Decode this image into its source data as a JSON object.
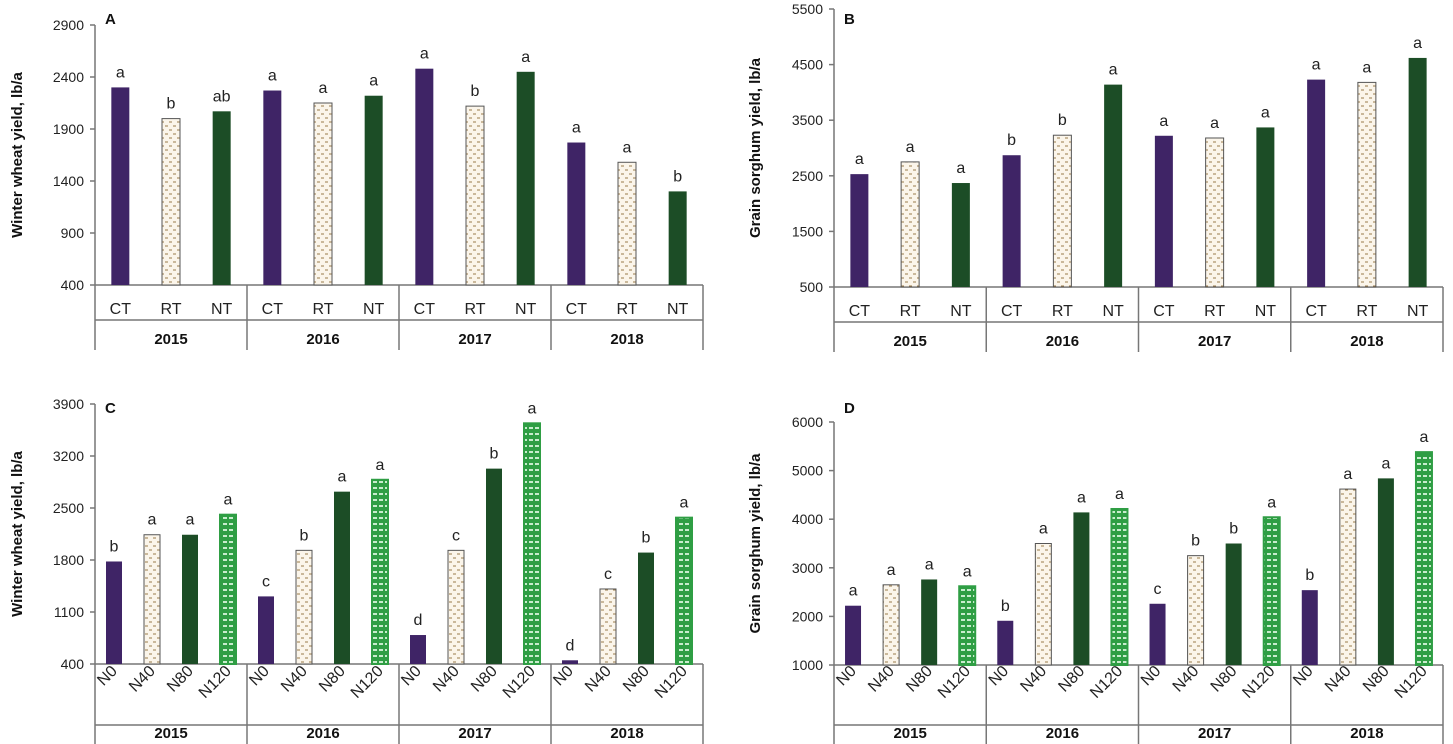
{
  "colors": {
    "ct": "#3f2466",
    "nt": "#1c4d26",
    "rt_fill": "#fbf5ea",
    "rt_dash": "#9a7a4a",
    "n120_outer": "#2f9e44",
    "n120_dash": "#c8eccd",
    "axis": "#777777"
  },
  "chart_data": [
    {
      "panel": "A",
      "type": "bar",
      "ylabel": "Winter wheat yield, lb/a",
      "ylim": [
        400,
        2900
      ],
      "yticks": [
        400,
        900,
        1400,
        1900,
        2400,
        2900
      ],
      "groups": [
        "2015",
        "2016",
        "2017",
        "2018"
      ],
      "categories": [
        "CT",
        "RT",
        "NT"
      ],
      "category_styles": [
        "ct",
        "rt",
        "nt"
      ],
      "values": [
        [
          2300,
          2000,
          2070
        ],
        [
          2270,
          2150,
          2220
        ],
        [
          2480,
          2120,
          2450
        ],
        [
          1770,
          1580,
          1300
        ]
      ],
      "letters": [
        [
          "a",
          "b",
          "ab"
        ],
        [
          "a",
          "a",
          "a"
        ],
        [
          "a",
          "b",
          "a"
        ],
        [
          "a",
          "a",
          "b"
        ]
      ],
      "rotate_categories": false
    },
    {
      "panel": "B",
      "type": "bar",
      "ylabel": "Grain sorghum yield, lb/a",
      "ylim": [
        500,
        5500
      ],
      "yticks": [
        500,
        1500,
        2500,
        3500,
        4500,
        5500
      ],
      "groups": [
        "2015",
        "2016",
        "2017",
        "2018"
      ],
      "categories": [
        "CT",
        "RT",
        "NT"
      ],
      "category_styles": [
        "ct",
        "rt",
        "nt"
      ],
      "values": [
        [
          2530,
          2750,
          2370
        ],
        [
          2870,
          3230,
          4140
        ],
        [
          3220,
          3180,
          3370
        ],
        [
          4230,
          4180,
          4620
        ]
      ],
      "letters": [
        [
          "a",
          "a",
          "a"
        ],
        [
          "b",
          "b",
          "a"
        ],
        [
          "a",
          "a",
          "a"
        ],
        [
          "a",
          "a",
          "a"
        ]
      ],
      "rotate_categories": false
    },
    {
      "panel": "C",
      "type": "bar",
      "ylabel": "Winter wheat yield, lb/a",
      "ylim": [
        400,
        3900
      ],
      "yticks": [
        400,
        1100,
        1800,
        2500,
        3200,
        3900
      ],
      "groups": [
        "2015",
        "2016",
        "2017",
        "2018"
      ],
      "categories": [
        "N0",
        "N40",
        "N80",
        "N120"
      ],
      "category_styles": [
        "ct",
        "rt",
        "nt",
        "n120"
      ],
      "values": [
        [
          1780,
          2140,
          2140,
          2410
        ],
        [
          1310,
          1930,
          2720,
          2880
        ],
        [
          790,
          1930,
          3030,
          3640
        ],
        [
          450,
          1410,
          1900,
          2370
        ]
      ],
      "letters": [
        [
          "b",
          "a",
          "a",
          "a"
        ],
        [
          "c",
          "b",
          "a",
          "a"
        ],
        [
          "d",
          "c",
          "b",
          "a"
        ],
        [
          "d",
          "c",
          "b",
          "a"
        ]
      ],
      "rotate_categories": true
    },
    {
      "panel": "D",
      "type": "bar",
      "ylabel": "Grain sorghum yield, lb/a",
      "ylim": [
        1000,
        6000
      ],
      "yticks": [
        1000,
        2000,
        3000,
        4000,
        5000,
        6000
      ],
      "groups": [
        "2015",
        "2016",
        "2017",
        "2018"
      ],
      "categories": [
        "N0",
        "N40",
        "N80",
        "N120"
      ],
      "category_styles": [
        "ct",
        "rt",
        "nt",
        "n120"
      ],
      "values": [
        [
          2220,
          2650,
          2760,
          2620
        ],
        [
          1910,
          3500,
          4140,
          4210
        ],
        [
          2260,
          3250,
          3500,
          4040
        ],
        [
          2540,
          4620,
          4840,
          5380
        ]
      ],
      "letters": [
        [
          "a",
          "a",
          "a",
          "a"
        ],
        [
          "b",
          "a",
          "a",
          "a"
        ],
        [
          "c",
          "b",
          "b",
          "a"
        ],
        [
          "b",
          "a",
          "a",
          "a"
        ]
      ],
      "rotate_categories": true
    }
  ]
}
